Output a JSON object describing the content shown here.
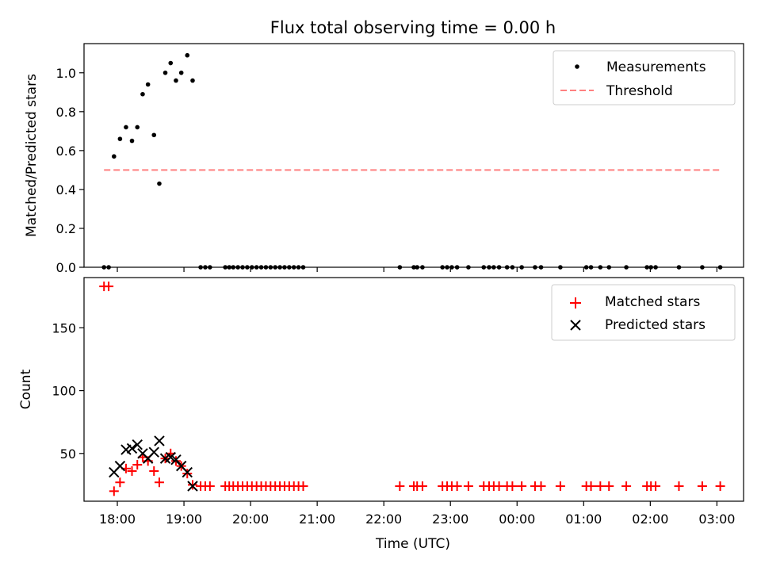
{
  "chart_data": {
    "title": "Flux total observing time = 0.00 h",
    "x_axis": {
      "label": "Time (UTC)",
      "unit": "hours since 18:00 UTC",
      "range": [
        -0.5,
        9.4
      ],
      "ticks": [
        {
          "v": 0,
          "label": "18:00"
        },
        {
          "v": 1,
          "label": "19:00"
        },
        {
          "v": 2,
          "label": "20:00"
        },
        {
          "v": 3,
          "label": "21:00"
        },
        {
          "v": 4,
          "label": "22:00"
        },
        {
          "v": 5,
          "label": "23:00"
        },
        {
          "v": 6,
          "label": "00:00"
        },
        {
          "v": 7,
          "label": "01:00"
        },
        {
          "v": 8,
          "label": "02:00"
        },
        {
          "v": 9,
          "label": "03:00"
        }
      ]
    },
    "top_panel": {
      "type": "scatter",
      "ylabel": "Matched/Predicted stars",
      "ylim": [
        0,
        1.15
      ],
      "yticks": [
        {
          "v": 0.0,
          "label": "0.0"
        },
        {
          "v": 0.2,
          "label": "0.2"
        },
        {
          "v": 0.4,
          "label": "0.4"
        },
        {
          "v": 0.6,
          "label": "0.6"
        },
        {
          "v": 0.8,
          "label": "0.8"
        },
        {
          "v": 1.0,
          "label": "1.0"
        }
      ],
      "legend": {
        "position": "top-right"
      },
      "series": [
        {
          "name": "Measurements",
          "type": "scatter",
          "marker": "dot",
          "color": "#000000",
          "x": [
            -0.2,
            -0.13,
            -0.05,
            0.04,
            0.13,
            0.22,
            0.3,
            0.38,
            0.46,
            0.55,
            0.63,
            0.72,
            0.8,
            0.88,
            0.96,
            1.05,
            1.13,
            1.25,
            1.32,
            1.39,
            1.62,
            1.68,
            1.74,
            1.81,
            1.88,
            1.95,
            2.02,
            2.09,
            2.16,
            2.23,
            2.3,
            2.37,
            2.44,
            2.51,
            2.58,
            2.65,
            2.72,
            2.79,
            4.24,
            4.45,
            4.5,
            4.58,
            4.88,
            4.95,
            5.02,
            5.1,
            5.27,
            5.5,
            5.58,
            5.65,
            5.73,
            5.85,
            5.93,
            6.07,
            6.27,
            6.36,
            6.65,
            7.04,
            7.11,
            7.25,
            7.38,
            7.64,
            7.95,
            8.01,
            8.08,
            8.43,
            8.78,
            9.05
          ],
          "y": [
            0,
            0,
            0.57,
            0.66,
            0.72,
            0.65,
            0.72,
            0.89,
            0.94,
            0.68,
            0.43,
            1.0,
            1.05,
            0.96,
            1.0,
            1.09,
            0.96,
            0,
            0,
            0,
            0,
            0,
            0,
            0,
            0,
            0,
            0,
            0,
            0,
            0,
            0,
            0,
            0,
            0,
            0,
            0,
            0,
            0,
            0,
            0,
            0,
            0,
            0,
            0,
            0,
            0,
            0,
            0,
            0,
            0,
            0,
            0,
            0,
            0,
            0,
            0,
            0,
            0,
            0,
            0,
            0,
            0,
            0,
            0,
            0,
            0,
            0,
            0
          ]
        },
        {
          "name": "Threshold",
          "type": "line",
          "style": "dashed",
          "color": "#ff8080",
          "x": [
            -0.2,
            9.05
          ],
          "y": [
            0.5,
            0.5
          ]
        }
      ]
    },
    "bottom_panel": {
      "type": "scatter",
      "ylabel": "Count",
      "ylim": [
        12,
        190
      ],
      "yticks": [
        {
          "v": 50,
          "label": "50"
        },
        {
          "v": 100,
          "label": "100"
        },
        {
          "v": 150,
          "label": "150"
        }
      ],
      "legend": {
        "position": "top-right"
      },
      "series": [
        {
          "name": "Matched stars",
          "marker": "plus",
          "color": "#ff0000",
          "x": [
            -0.2,
            -0.13,
            -0.05,
            0.04,
            0.13,
            0.22,
            0.3,
            0.38,
            0.46,
            0.55,
            0.63,
            0.72,
            0.8,
            0.88,
            0.96,
            1.05,
            1.13,
            1.25,
            1.32,
            1.39,
            1.62,
            1.68,
            1.74,
            1.81,
            1.88,
            1.95,
            2.02,
            2.09,
            2.16,
            2.23,
            2.3,
            2.37,
            2.44,
            2.51,
            2.58,
            2.65,
            2.72,
            2.79,
            4.24,
            4.45,
            4.5,
            4.58,
            4.88,
            4.95,
            5.02,
            5.1,
            5.27,
            5.5,
            5.58,
            5.65,
            5.73,
            5.85,
            5.93,
            6.07,
            6.27,
            6.36,
            6.65,
            7.04,
            7.11,
            7.25,
            7.38,
            7.64,
            7.95,
            8.01,
            8.08,
            8.43,
            8.78,
            9.05
          ],
          "y": [
            183,
            183,
            20,
            27,
            38,
            36,
            41,
            47,
            44,
            36,
            27,
            46,
            50,
            44,
            40,
            34,
            25,
            24,
            24,
            24,
            24,
            24,
            24,
            24,
            24,
            24,
            24,
            24,
            24,
            24,
            24,
            24,
            24,
            24,
            24,
            24,
            24,
            24,
            24,
            24,
            24,
            24,
            24,
            24,
            24,
            24,
            24,
            24,
            24,
            24,
            24,
            24,
            24,
            24,
            24,
            24,
            24,
            24,
            24,
            24,
            24,
            24,
            24,
            24,
            24,
            24,
            24,
            24
          ]
        },
        {
          "name": "Predicted stars",
          "marker": "x",
          "color": "#000000",
          "x": [
            -0.05,
            0.04,
            0.13,
            0.22,
            0.3,
            0.38,
            0.46,
            0.55,
            0.63,
            0.72,
            0.8,
            0.88,
            0.96,
            1.05,
            1.13
          ],
          "y": [
            35,
            40,
            53,
            54,
            57,
            50,
            46,
            51,
            60,
            46,
            47,
            45,
            40,
            35,
            24
          ]
        }
      ]
    }
  }
}
